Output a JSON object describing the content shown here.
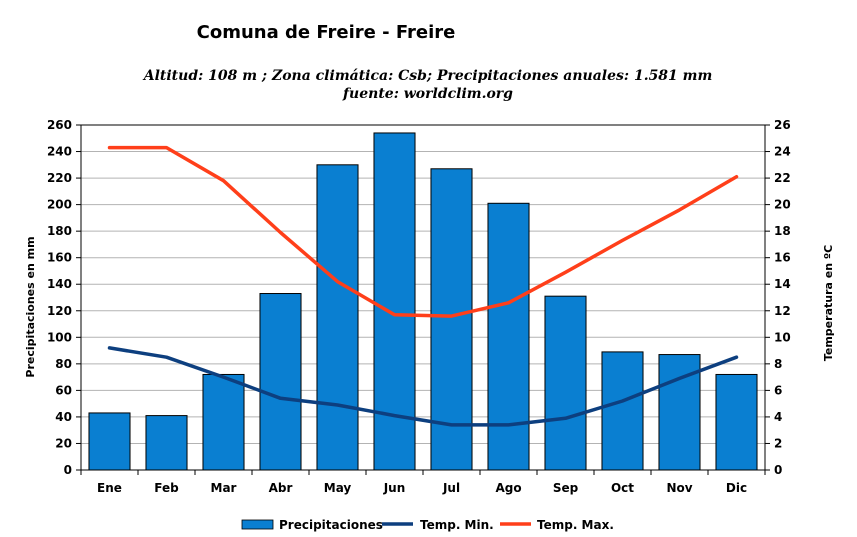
{
  "chart_data": {
    "type": "bar",
    "title": "Comuna de Freire - Freire",
    "subtitle": "Altitud: 108 m ;  Zona climática: Csb;  Precipitaciones anuales: 1.581 mm",
    "subtitle2": "fuente: worldclim.org",
    "categories": [
      "Ene",
      "Feb",
      "Mar",
      "Abr",
      "May",
      "Jun",
      "Jul",
      "Ago",
      "Sep",
      "Oct",
      "Nov",
      "Dic"
    ],
    "series": [
      {
        "name": "Precipitaciones",
        "type": "bar",
        "axis": "left",
        "color": "#0a7fd1",
        "values": [
          43,
          41,
          72,
          133,
          230,
          254,
          227,
          201,
          131,
          89,
          87,
          72
        ]
      },
      {
        "name": "Temp. Min.",
        "type": "line",
        "axis": "right",
        "color": "#0d3f7f",
        "values": [
          9.2,
          8.5,
          7.0,
          5.4,
          4.9,
          4.1,
          3.4,
          3.4,
          3.9,
          5.2,
          6.9,
          8.5
        ]
      },
      {
        "name": "Temp. Max.",
        "type": "line",
        "axis": "right",
        "color": "#ff3f1a",
        "values": [
          24.3,
          24.3,
          21.8,
          17.9,
          14.2,
          11.7,
          11.6,
          12.6,
          14.9,
          17.3,
          19.6,
          22.1
        ]
      }
    ],
    "ylabel": "Precipitaciones en mm",
    "y2label": "Temperatura en ºC",
    "ylim": [
      0,
      260
    ],
    "y2lim": [
      0,
      26
    ],
    "yticks": [
      "0",
      "20",
      "40",
      "60",
      "80",
      "100",
      "120",
      "140",
      "160",
      "180",
      "200",
      "220",
      "240",
      "260"
    ],
    "y2ticks": [
      "0",
      "2",
      "4",
      "6",
      "8",
      "10",
      "12",
      "14",
      "16",
      "18",
      "20",
      "22",
      "24",
      "26"
    ],
    "grid": true,
    "legend": "bottom"
  }
}
